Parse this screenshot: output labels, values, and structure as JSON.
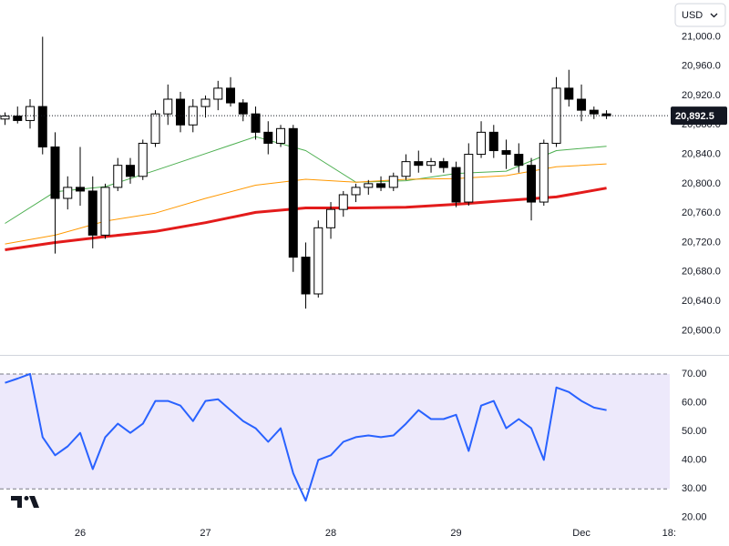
{
  "currency_button": "USD",
  "chart_data": [
    {
      "type": "candlestick",
      "xlim": [
        -0.4,
        53.05
      ],
      "ylim": [
        20567,
        21050
      ],
      "yticks": [
        {
          "value": 20600,
          "label": "20,600.0"
        },
        {
          "value": 20640,
          "label": "20,640.0"
        },
        {
          "value": 20680,
          "label": "20,680.0"
        },
        {
          "value": 20720,
          "label": "20,720.0"
        },
        {
          "value": 20760,
          "label": "20,760.0"
        },
        {
          "value": 20800,
          "label": "20,800.0"
        },
        {
          "value": 20840,
          "label": "20,840.0"
        },
        {
          "value": 20880,
          "label": "20,880.0"
        },
        {
          "value": 20920,
          "label": "20,920.0"
        },
        {
          "value": 20960,
          "label": "20,960.0"
        },
        {
          "value": 21000,
          "label": "21,000.0"
        }
      ],
      "last_price": {
        "value": 20892.5,
        "label": "20,892.5"
      },
      "up_color": "#ffffff",
      "down_color": "#000000",
      "outline_color": "#000000",
      "open": [
        20888,
        20892,
        20886,
        20905,
        20850,
        20780,
        20795,
        20790,
        20730,
        20795,
        20825,
        20810,
        20855,
        20895,
        20915,
        20880,
        20905,
        20915,
        20930,
        20910,
        20895,
        20870,
        20855,
        20875,
        20700,
        20650,
        20740,
        20765,
        20785,
        20795,
        20800,
        20795,
        20810,
        20830,
        20825,
        20830,
        20822,
        20775,
        20840,
        20870,
        20845,
        20840,
        20825,
        20775,
        20855,
        20930,
        20915,
        20900,
        20895
      ],
      "high": [
        20897,
        20905,
        20915,
        21000,
        20870,
        20810,
        20850,
        20810,
        20800,
        20835,
        20835,
        20860,
        20900,
        20935,
        20925,
        20915,
        20920,
        20940,
        20945,
        20915,
        20905,
        20885,
        20880,
        20880,
        20720,
        20750,
        20775,
        20790,
        20800,
        20805,
        20810,
        20815,
        20840,
        20845,
        20835,
        20835,
        20830,
        20855,
        20885,
        20880,
        20860,
        20855,
        20835,
        20860,
        20945,
        20955,
        20935,
        20905,
        20900
      ],
      "low": [
        20880,
        20882,
        20875,
        20840,
        20705,
        20765,
        20770,
        20712,
        20725,
        20790,
        20800,
        20805,
        20850,
        20880,
        20870,
        20870,
        20890,
        20900,
        20905,
        20885,
        20860,
        20840,
        20850,
        20680,
        20630,
        20645,
        20725,
        20755,
        20775,
        20785,
        20790,
        20790,
        20805,
        20815,
        20815,
        20815,
        20768,
        20770,
        20835,
        20835,
        20820,
        20815,
        20750,
        20770,
        20850,
        20905,
        20885,
        20888,
        20888
      ],
      "close": [
        20892,
        20886,
        20905,
        20850,
        20780,
        20795,
        20790,
        20730,
        20795,
        20825,
        20810,
        20855,
        20895,
        20915,
        20880,
        20905,
        20915,
        20930,
        20910,
        20895,
        20870,
        20855,
        20875,
        20700,
        20650,
        20740,
        20765,
        20785,
        20795,
        20800,
        20795,
        20810,
        20830,
        20825,
        20830,
        20822,
        20775,
        20840,
        20870,
        20845,
        20840,
        20825,
        20775,
        20855,
        20930,
        20915,
        20900,
        20895,
        20892.5
      ],
      "series": [
        {
          "color": "#4caf50",
          "width": 1,
          "x": [
            0,
            4,
            8,
            12,
            16,
            20,
            24,
            28,
            32,
            36,
            40,
            44,
            48
          ],
          "values": [
            20746,
            20789,
            20796,
            20818,
            20841,
            20864,
            20845,
            20802,
            20804,
            20814,
            20817,
            20845,
            20851
          ]
        },
        {
          "color": "#ff9800",
          "width": 1,
          "x": [
            0,
            4,
            8,
            12,
            16,
            20,
            24,
            28,
            32,
            36,
            40,
            44,
            48
          ],
          "values": [
            20718,
            20730,
            20749,
            20760,
            20780,
            20798,
            20806,
            20802,
            20806,
            20807,
            20811,
            20823,
            20827
          ]
        },
        {
          "color": "#e31b1b",
          "width": 3,
          "x": [
            0,
            4,
            8,
            12,
            16,
            20,
            24,
            28,
            32,
            36,
            40,
            44,
            48
          ],
          "values": [
            20710,
            20720,
            20728,
            20735,
            20747,
            20761,
            20767,
            20767,
            20768,
            20772,
            20777,
            20782,
            20794
          ]
        }
      ]
    },
    {
      "type": "line",
      "xlim": [
        -0.4,
        53.05
      ],
      "ylim": [
        19,
        76
      ],
      "yticks": [
        {
          "value": 20,
          "label": "20.00"
        },
        {
          "value": 30,
          "label": "30.00"
        },
        {
          "value": 40,
          "label": "40.00"
        },
        {
          "value": 50,
          "label": "50.00"
        },
        {
          "value": 60,
          "label": "60.00"
        },
        {
          "value": 70,
          "label": "70.00"
        }
      ],
      "xticks": [
        {
          "value": 6,
          "label": "26"
        },
        {
          "value": 16,
          "label": "27"
        },
        {
          "value": 26,
          "label": "28"
        },
        {
          "value": 36,
          "label": "29"
        },
        {
          "value": 46,
          "label": "Dec"
        },
        {
          "value": 53,
          "label": "18:"
        }
      ],
      "band": [
        30,
        70
      ],
      "band_color": "#ede9fb",
      "color": "#2962ff",
      "values": [
        66.9,
        68.4,
        70,
        48,
        41.7,
        44.8,
        49.5,
        36.9,
        48,
        52.7,
        49.5,
        52.7,
        60.6,
        60.6,
        59,
        53.6,
        60.6,
        61.2,
        57.4,
        53.6,
        51.1,
        46.4,
        51.1,
        35.4,
        25.9,
        40.1,
        41.7,
        46.4,
        48,
        48.6,
        48,
        48.6,
        52.7,
        57.4,
        54.3,
        54.3,
        55.8,
        43.2,
        59,
        60.6,
        51.1,
        54.3,
        51.1,
        40.1,
        65.3,
        63.7,
        60.6,
        58.3,
        57.4
      ]
    }
  ]
}
